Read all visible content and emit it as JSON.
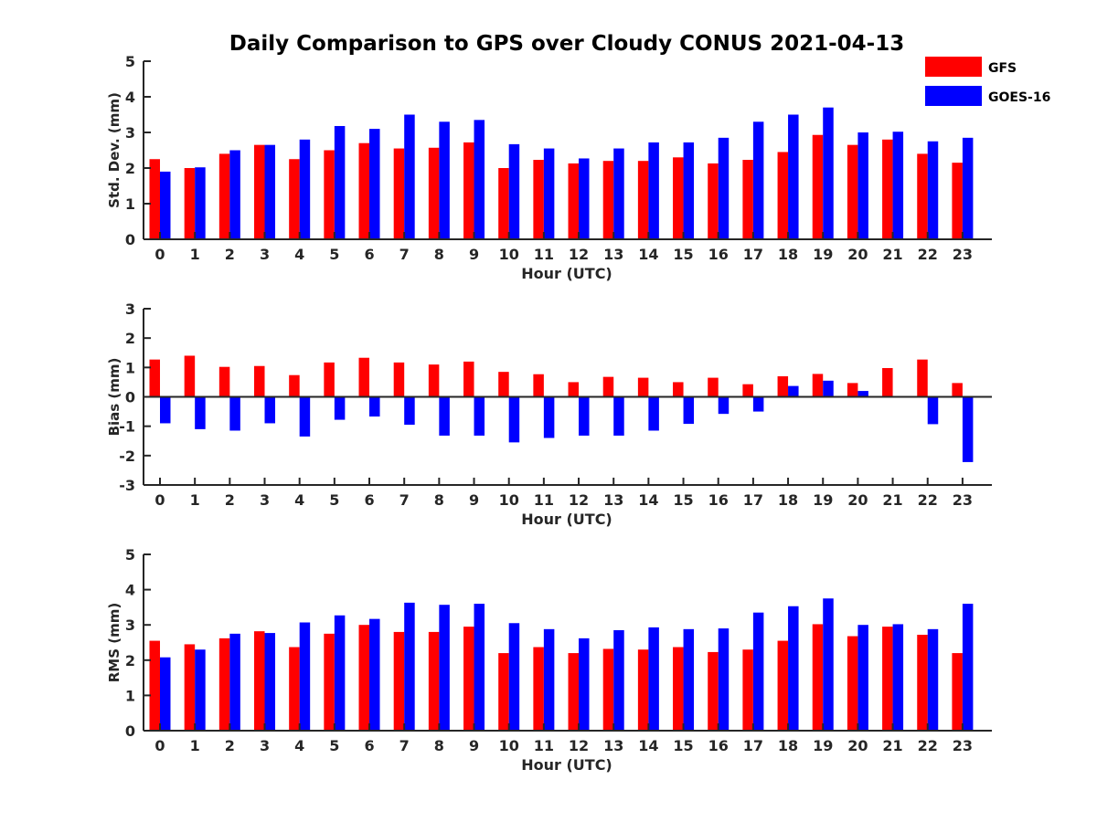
{
  "title": "Daily Comparison to GPS over Cloudy CONUS 2021-04-13",
  "legend": [
    {
      "label": "GFS",
      "color": "#ff0000"
    },
    {
      "label": "GOES-16",
      "color": "#0000ff"
    }
  ],
  "chart_data": [
    {
      "type": "bar",
      "ylabel": "Std. Dev. (mm)",
      "xlabel": "Hour (UTC)",
      "ylim": [
        0,
        5
      ],
      "yticks": [
        0,
        1,
        2,
        3,
        4,
        5
      ],
      "categories": [
        "0",
        "1",
        "2",
        "3",
        "4",
        "5",
        "6",
        "7",
        "8",
        "9",
        "10",
        "11",
        "12",
        "13",
        "14",
        "15",
        "16",
        "17",
        "18",
        "19",
        "20",
        "21",
        "22",
        "23"
      ],
      "series": [
        {
          "name": "GFS",
          "color": "#ff0000",
          "values": [
            2.25,
            2.0,
            2.4,
            2.65,
            2.25,
            2.5,
            2.7,
            2.55,
            2.57,
            2.72,
            2.0,
            2.23,
            2.13,
            2.2,
            2.2,
            2.3,
            2.13,
            2.23,
            2.45,
            2.93,
            2.65,
            2.8,
            2.4,
            2.15
          ]
        },
        {
          "name": "GOES-16",
          "color": "#0000ff",
          "values": [
            1.9,
            2.02,
            2.5,
            2.65,
            2.8,
            3.18,
            3.1,
            3.5,
            3.3,
            3.35,
            2.67,
            2.55,
            2.27,
            2.55,
            2.72,
            2.72,
            2.85,
            3.3,
            3.5,
            3.7,
            3.0,
            3.02,
            2.75,
            2.85
          ]
        }
      ]
    },
    {
      "type": "bar",
      "ylabel": "Bias (mm)",
      "xlabel": "Hour (UTC)",
      "ylim": [
        -3,
        3
      ],
      "yticks": [
        -3,
        -2,
        -1,
        0,
        1,
        2,
        3
      ],
      "categories": [
        "0",
        "1",
        "2",
        "3",
        "4",
        "5",
        "6",
        "7",
        "8",
        "9",
        "10",
        "11",
        "12",
        "13",
        "14",
        "15",
        "16",
        "17",
        "18",
        "19",
        "20",
        "21",
        "22",
        "23"
      ],
      "series": [
        {
          "name": "GFS",
          "color": "#ff0000",
          "values": [
            1.27,
            1.4,
            1.02,
            1.05,
            0.74,
            1.17,
            1.33,
            1.17,
            1.1,
            1.2,
            0.85,
            0.77,
            0.5,
            0.68,
            0.65,
            0.5,
            0.65,
            0.43,
            0.7,
            0.78,
            0.47,
            0.98,
            1.27,
            0.47
          ]
        },
        {
          "name": "GOES-16",
          "color": "#0000ff",
          "values": [
            -0.9,
            -1.1,
            -1.15,
            -0.9,
            -1.35,
            -0.78,
            -0.67,
            -0.95,
            -1.32,
            -1.32,
            -1.55,
            -1.4,
            -1.32,
            -1.32,
            -1.15,
            -0.92,
            -0.58,
            -0.5,
            0.37,
            0.55,
            0.2,
            0.0,
            -0.93,
            -2.22
          ]
        }
      ]
    },
    {
      "type": "bar",
      "ylabel": "RMS (mm)",
      "xlabel": "Hour (UTC)",
      "ylim": [
        0,
        5
      ],
      "yticks": [
        0,
        1,
        2,
        3,
        4,
        5
      ],
      "categories": [
        "0",
        "1",
        "2",
        "3",
        "4",
        "5",
        "6",
        "7",
        "8",
        "9",
        "10",
        "11",
        "12",
        "13",
        "14",
        "15",
        "16",
        "17",
        "18",
        "19",
        "20",
        "21",
        "22",
        "23"
      ],
      "series": [
        {
          "name": "GFS",
          "color": "#ff0000",
          "values": [
            2.55,
            2.45,
            2.62,
            2.82,
            2.37,
            2.75,
            3.0,
            2.8,
            2.8,
            2.95,
            2.2,
            2.37,
            2.2,
            2.32,
            2.3,
            2.37,
            2.23,
            2.3,
            2.55,
            3.02,
            2.68,
            2.95,
            2.72,
            2.2
          ]
        },
        {
          "name": "GOES-16",
          "color": "#0000ff",
          "values": [
            2.08,
            2.3,
            2.75,
            2.77,
            3.07,
            3.27,
            3.17,
            3.63,
            3.57,
            3.6,
            3.05,
            2.88,
            2.62,
            2.85,
            2.93,
            2.88,
            2.9,
            3.35,
            3.53,
            3.75,
            3.0,
            3.02,
            2.88,
            3.6
          ]
        }
      ]
    }
  ]
}
